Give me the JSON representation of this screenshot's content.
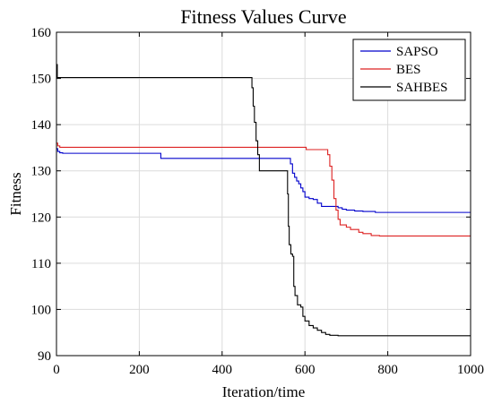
{
  "chart_data": {
    "type": "line",
    "title": "Fitness Values Curve",
    "xlabel": "Iteration/time",
    "ylabel": "Fitness",
    "xlim": [
      0,
      1000
    ],
    "ylim": [
      90,
      160
    ],
    "xticks": [
      0,
      200,
      400,
      600,
      800,
      1000
    ],
    "yticks": [
      90,
      100,
      110,
      120,
      130,
      140,
      150,
      160
    ],
    "grid": true,
    "legend_position": "top-right",
    "series": [
      {
        "name": "SAPSO",
        "color": "#0000cc",
        "points": [
          [
            0,
            134.8
          ],
          [
            3,
            134.2
          ],
          [
            8,
            133.9
          ],
          [
            15,
            133.8
          ],
          [
            250,
            133.8
          ],
          [
            252,
            132.7
          ],
          [
            560,
            132.7
          ],
          [
            565,
            131.5
          ],
          [
            570,
            129.5
          ],
          [
            575,
            128.6
          ],
          [
            580,
            127.8
          ],
          [
            585,
            127.2
          ],
          [
            590,
            126.3
          ],
          [
            595,
            125.5
          ],
          [
            600,
            124.3
          ],
          [
            610,
            124.0
          ],
          [
            620,
            123.8
          ],
          [
            630,
            123.0
          ],
          [
            640,
            122.3
          ],
          [
            660,
            122.3
          ],
          [
            680,
            122.0
          ],
          [
            690,
            121.7
          ],
          [
            700,
            121.5
          ],
          [
            720,
            121.3
          ],
          [
            740,
            121.2
          ],
          [
            770,
            121.0
          ],
          [
            1000,
            121.0
          ]
        ]
      },
      {
        "name": "BES",
        "color": "#dd2222",
        "points": [
          [
            0,
            136.0
          ],
          [
            3,
            135.4
          ],
          [
            8,
            135.1
          ],
          [
            600,
            135.1
          ],
          [
            603,
            134.6
          ],
          [
            650,
            134.6
          ],
          [
            655,
            133.5
          ],
          [
            660,
            131.0
          ],
          [
            665,
            128.0
          ],
          [
            670,
            124.0
          ],
          [
            675,
            121.5
          ],
          [
            680,
            119.5
          ],
          [
            685,
            118.3
          ],
          [
            700,
            117.8
          ],
          [
            710,
            117.3
          ],
          [
            730,
            116.7
          ],
          [
            740,
            116.4
          ],
          [
            760,
            116.0
          ],
          [
            780,
            115.9
          ],
          [
            1000,
            115.9
          ]
        ]
      },
      {
        "name": "SAHBES",
        "color": "#000000",
        "points": [
          [
            0,
            153.0
          ],
          [
            2,
            150.2
          ],
          [
            470,
            150.2
          ],
          [
            472,
            148.0
          ],
          [
            475,
            144.0
          ],
          [
            478,
            140.5
          ],
          [
            482,
            136.5
          ],
          [
            486,
            133.5
          ],
          [
            490,
            130.0
          ],
          [
            555,
            130.0
          ],
          [
            558,
            125.0
          ],
          [
            560,
            118.0
          ],
          [
            562,
            114.0
          ],
          [
            566,
            112.0
          ],
          [
            570,
            111.5
          ],
          [
            573,
            105.0
          ],
          [
            576,
            103.0
          ],
          [
            582,
            101.0
          ],
          [
            590,
            100.5
          ],
          [
            595,
            98.5
          ],
          [
            600,
            97.5
          ],
          [
            610,
            96.5
          ],
          [
            620,
            96.0
          ],
          [
            630,
            95.5
          ],
          [
            640,
            95.0
          ],
          [
            650,
            94.6
          ],
          [
            660,
            94.4
          ],
          [
            680,
            94.3
          ],
          [
            1000,
            94.3
          ]
        ]
      }
    ]
  }
}
